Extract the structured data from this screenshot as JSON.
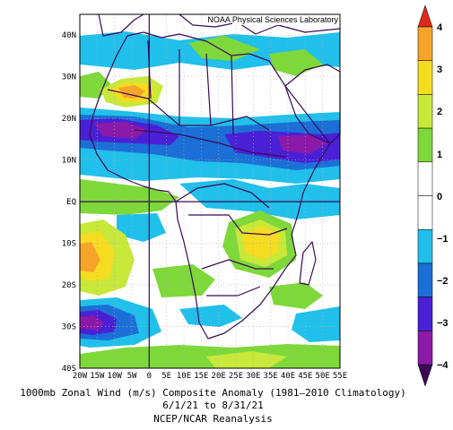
{
  "map": {
    "credit": "NOAA Physical Sciences Laboratory",
    "lon_range": [
      -20,
      55
    ],
    "lat_range": [
      -40,
      45
    ],
    "lon_ticks": [
      "20W",
      "15W",
      "10W",
      "5W",
      "0",
      "5E",
      "10E",
      "15E",
      "20E",
      "25E",
      "30E",
      "35E",
      "40E",
      "45E",
      "50E",
      "55E"
    ],
    "lat_ticks": [
      "40N",
      "30N",
      "20N",
      "10N",
      "EQ",
      "10S",
      "20S",
      "30S",
      "40S"
    ],
    "colors": {
      "-4": "#3b0a55",
      "-3": "#8b1aa8",
      "-2": "#4a20d6",
      "-1": "#1b6fd6",
      "-0.5": "#20c0ea",
      "0": "#ffffff",
      "0.5": "#7ed83a",
      "1": "#c8e83a",
      "2": "#f6dc20",
      "3": "#f7a52a",
      "4": "#dc2a1a",
      "5": "#a01010",
      "coast": "#3a0a55"
    }
  },
  "colorbar": {
    "labels": [
      "4",
      "3",
      "2",
      "1",
      "0",
      "−1",
      "−2",
      "−3",
      "−4"
    ]
  },
  "caption": {
    "line1": "1000mb Zonal Wind (m/s) Composite Anomaly (1981–2010 Climatology)",
    "line2": "6/1/21 to 8/31/21",
    "line3": "NCEP/NCAR Reanalysis"
  }
}
